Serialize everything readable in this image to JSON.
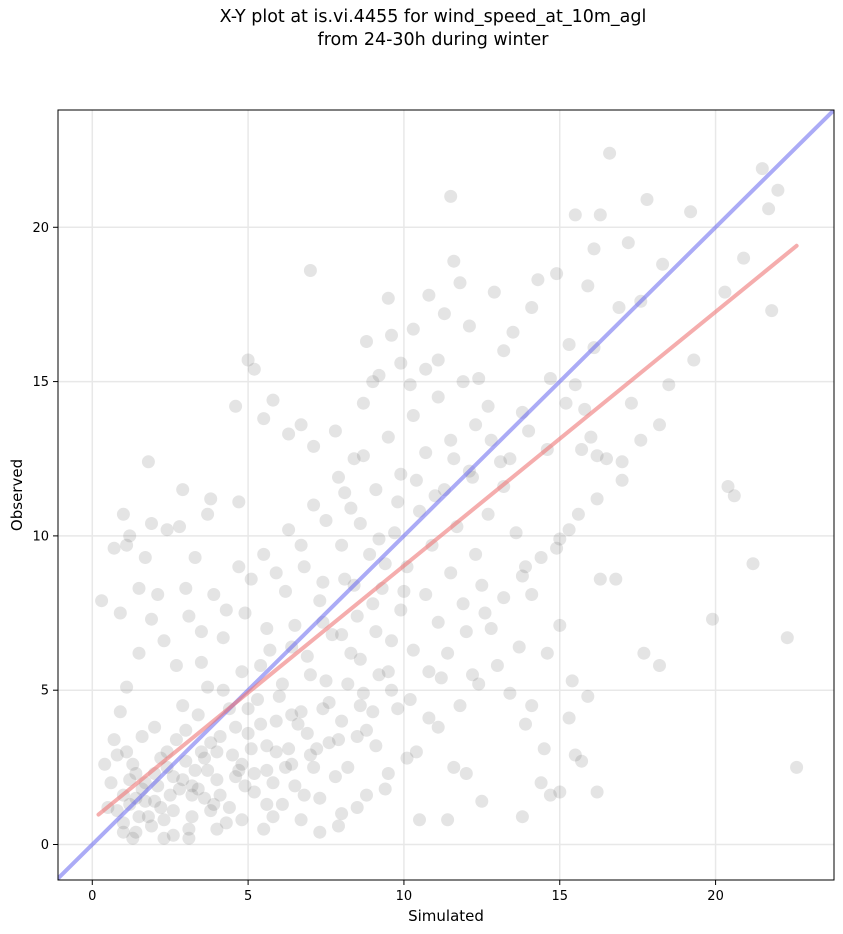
{
  "chart_data": {
    "type": "scatter",
    "title_line1": "X-Y plot at is.vi.4455 for wind_speed_at_10m_agl",
    "title_line2": "from 24-30h during winter",
    "xlabel": "Simulated",
    "ylabel": "Observed",
    "xlim": [
      -1.1,
      23.8
    ],
    "ylim": [
      -1.15,
      23.8
    ],
    "x_ticks": [
      0,
      5,
      10,
      15,
      20
    ],
    "y_ticks": [
      0,
      5,
      10,
      15,
      20
    ],
    "grid": true,
    "point_color": "#555555",
    "one_to_one_line": {
      "color": "#6666ee",
      "x": [
        -1.1,
        23.8
      ],
      "y": [
        -1.1,
        23.8
      ]
    },
    "fit_line": {
      "color": "#ee7777",
      "x": [
        0.2,
        22.6
      ],
      "y": [
        0.97,
        19.4
      ]
    },
    "points": [
      [
        0.3,
        7.9
      ],
      [
        0.7,
        9.6
      ],
      [
        0.9,
        7.5
      ],
      [
        1.0,
        10.7
      ],
      [
        1.1,
        9.7
      ],
      [
        1.2,
        10.0
      ],
      [
        1.5,
        8.3
      ],
      [
        1.7,
        9.3
      ],
      [
        1.8,
        12.4
      ],
      [
        1.9,
        10.4
      ],
      [
        2.1,
        8.1
      ],
      [
        2.4,
        10.2
      ],
      [
        2.8,
        10.3
      ],
      [
        2.9,
        11.5
      ],
      [
        3.0,
        8.3
      ],
      [
        3.3,
        9.3
      ],
      [
        3.7,
        10.7
      ],
      [
        3.8,
        11.2
      ],
      [
        4.6,
        14.2
      ],
      [
        4.7,
        11.1
      ],
      [
        5.0,
        15.7
      ],
      [
        5.2,
        15.4
      ],
      [
        5.5,
        13.8
      ],
      [
        5.8,
        14.4
      ],
      [
        6.3,
        13.3
      ],
      [
        6.7,
        13.6
      ],
      [
        7.0,
        18.6
      ],
      [
        7.1,
        12.9
      ],
      [
        7.8,
        13.4
      ],
      [
        8.1,
        11.4
      ],
      [
        8.4,
        12.5
      ],
      [
        8.7,
        14.3
      ],
      [
        8.8,
        16.3
      ],
      [
        9.0,
        15.0
      ],
      [
        9.2,
        15.2
      ],
      [
        9.5,
        17.7
      ],
      [
        9.6,
        16.5
      ],
      [
        9.9,
        15.6
      ],
      [
        10.2,
        14.9
      ],
      [
        10.3,
        16.7
      ],
      [
        10.7,
        15.4
      ],
      [
        10.8,
        17.8
      ],
      [
        11.1,
        15.7
      ],
      [
        11.3,
        17.2
      ],
      [
        11.5,
        21.0
      ],
      [
        11.6,
        18.9
      ],
      [
        11.8,
        18.2
      ],
      [
        12.1,
        16.8
      ],
      [
        12.4,
        15.1
      ],
      [
        12.7,
        14.2
      ],
      [
        12.9,
        17.9
      ],
      [
        13.2,
        16.0
      ],
      [
        13.5,
        16.6
      ],
      [
        13.8,
        14.0
      ],
      [
        14.1,
        17.4
      ],
      [
        14.3,
        18.3
      ],
      [
        14.7,
        15.1
      ],
      [
        14.9,
        18.5
      ],
      [
        15.3,
        16.2
      ],
      [
        15.5,
        14.9
      ],
      [
        15.8,
        14.1
      ],
      [
        16.1,
        16.1
      ],
      [
        16.3,
        20.4
      ],
      [
        16.6,
        22.4
      ],
      [
        16.9,
        17.4
      ],
      [
        17.3,
        14.3
      ],
      [
        17.8,
        20.9
      ],
      [
        18.3,
        18.8
      ],
      [
        18.5,
        14.9
      ],
      [
        19.2,
        20.5
      ],
      [
        19.3,
        15.7
      ],
      [
        20.3,
        17.9
      ],
      [
        20.9,
        19.0
      ],
      [
        21.5,
        21.9
      ],
      [
        21.7,
        20.6
      ],
      [
        21.8,
        17.3
      ],
      [
        22.0,
        21.2
      ],
      [
        15.5,
        20.4
      ],
      [
        16.1,
        19.3
      ],
      [
        15.9,
        18.1
      ],
      [
        17.2,
        19.5
      ],
      [
        17.6,
        17.6
      ],
      [
        13.2,
        11.6
      ],
      [
        13.6,
        10.1
      ],
      [
        13.9,
        9.0
      ],
      [
        14.1,
        8.1
      ],
      [
        14.6,
        6.2
      ],
      [
        14.9,
        9.6
      ],
      [
        15.0,
        7.1
      ],
      [
        15.3,
        10.2
      ],
      [
        15.7,
        12.8
      ],
      [
        16.0,
        13.2
      ],
      [
        16.2,
        12.6
      ],
      [
        16.5,
        12.5
      ],
      [
        17.0,
        12.4
      ],
      [
        16.3,
        8.6
      ],
      [
        16.8,
        8.6
      ],
      [
        17.7,
        6.2
      ],
      [
        18.2,
        5.8
      ],
      [
        19.9,
        7.3
      ],
      [
        20.4,
        11.6
      ],
      [
        20.6,
        11.3
      ],
      [
        21.2,
        9.1
      ],
      [
        22.3,
        6.7
      ],
      [
        22.6,
        2.5
      ],
      [
        12.8,
        7.0
      ],
      [
        13.0,
        5.8
      ],
      [
        13.4,
        4.9
      ],
      [
        13.7,
        6.4
      ],
      [
        13.9,
        3.9
      ],
      [
        14.1,
        4.5
      ],
      [
        14.5,
        3.1
      ],
      [
        14.7,
        1.6
      ],
      [
        15.0,
        1.7
      ],
      [
        15.3,
        4.1
      ],
      [
        15.5,
        2.9
      ],
      [
        15.7,
        2.7
      ],
      [
        15.9,
        4.8
      ],
      [
        16.2,
        1.7
      ],
      [
        15.4,
        5.3
      ],
      [
        13.8,
        0.9
      ],
      [
        14.4,
        2.0
      ],
      [
        12.5,
        1.4
      ],
      [
        12.0,
        2.3
      ],
      [
        11.4,
        0.8
      ],
      [
        11.6,
        2.5
      ],
      [
        12.2,
        5.5
      ],
      [
        10.5,
        0.8
      ],
      [
        10.1,
        2.8
      ],
      [
        10.8,
        4.1
      ],
      [
        11.2,
        5.4
      ],
      [
        9.4,
        1.8
      ],
      [
        9.1,
        3.2
      ],
      [
        8.6,
        4.5
      ],
      [
        8.2,
        2.5
      ],
      [
        0.5,
        1.2
      ],
      [
        0.8,
        2.9
      ],
      [
        1.0,
        0.4
      ],
      [
        1.2,
        2.1
      ],
      [
        1.4,
        1.5
      ],
      [
        1.6,
        3.5
      ],
      [
        1.8,
        0.9
      ],
      [
        2.0,
        2.3
      ],
      [
        2.2,
        1.2
      ],
      [
        2.4,
        3.0
      ],
      [
        2.6,
        0.3
      ],
      [
        2.8,
        1.8
      ],
      [
        3.0,
        2.7
      ],
      [
        3.2,
        0.9
      ],
      [
        3.4,
        4.2
      ],
      [
        3.6,
        1.5
      ],
      [
        3.8,
        3.3
      ],
      [
        4.0,
        2.1
      ],
      [
        4.2,
        5.0
      ],
      [
        4.4,
        1.2
      ],
      [
        4.6,
        3.8
      ],
      [
        4.8,
        2.6
      ],
      [
        5.0,
        4.4
      ],
      [
        5.2,
        1.7
      ],
      [
        5.4,
        5.8
      ],
      [
        5.6,
        3.2
      ],
      [
        5.8,
        0.9
      ],
      [
        6.0,
        4.8
      ],
      [
        6.2,
        2.5
      ],
      [
        6.4,
        6.4
      ],
      [
        6.6,
        3.9
      ],
      [
        6.8,
        1.6
      ],
      [
        7.0,
        5.5
      ],
      [
        7.2,
        3.1
      ],
      [
        7.4,
        7.2
      ],
      [
        7.6,
        4.6
      ],
      [
        7.8,
        2.2
      ],
      [
        8.0,
        6.8
      ],
      [
        8.2,
        5.2
      ],
      [
        8.4,
        8.4
      ],
      [
        8.6,
        6.0
      ],
      [
        8.8,
        3.7
      ],
      [
        9.0,
        7.8
      ],
      [
        9.2,
        5.5
      ],
      [
        9.4,
        9.1
      ],
      [
        9.6,
        6.6
      ],
      [
        9.8,
        4.4
      ],
      [
        10.0,
        8.2
      ],
      [
        1.3,
        0.2
      ],
      [
        1.9,
        0.6
      ],
      [
        2.5,
        1.6
      ],
      [
        3.1,
        0.5
      ],
      [
        3.7,
        2.4
      ],
      [
        4.3,
        0.7
      ],
      [
        4.9,
        1.9
      ],
      [
        5.5,
        0.5
      ],
      [
        6.1,
        1.3
      ],
      [
        6.7,
        0.8
      ],
      [
        7.3,
        1.5
      ],
      [
        7.9,
        0.6
      ],
      [
        8.5,
        1.2
      ],
      [
        0.9,
        4.3
      ],
      [
        1.1,
        5.1
      ],
      [
        1.5,
        6.2
      ],
      [
        1.9,
        7.3
      ],
      [
        2.3,
        6.6
      ],
      [
        2.7,
        5.8
      ],
      [
        3.1,
        7.4
      ],
      [
        3.5,
        6.9
      ],
      [
        3.9,
        8.1
      ],
      [
        4.3,
        7.6
      ],
      [
        4.7,
        9.0
      ],
      [
        5.1,
        8.6
      ],
      [
        5.5,
        9.4
      ],
      [
        5.9,
        8.8
      ],
      [
        6.3,
        10.2
      ],
      [
        6.7,
        9.7
      ],
      [
        7.1,
        11.0
      ],
      [
        7.5,
        10.5
      ],
      [
        7.9,
        11.9
      ],
      [
        8.3,
        10.9
      ],
      [
        8.7,
        12.6
      ],
      [
        9.1,
        11.5
      ],
      [
        9.5,
        13.2
      ],
      [
        9.9,
        12.0
      ],
      [
        10.3,
        13.9
      ],
      [
        10.7,
        12.7
      ],
      [
        11.1,
        14.5
      ],
      [
        11.5,
        13.1
      ],
      [
        11.9,
        15.0
      ],
      [
        12.3,
        13.6
      ],
      [
        12.7,
        10.7
      ],
      [
        13.1,
        12.4
      ],
      [
        0.6,
        2.0
      ],
      [
        0.7,
        3.4
      ],
      [
        1.0,
        1.6
      ],
      [
        1.3,
        2.6
      ],
      [
        1.5,
        0.9
      ],
      [
        1.7,
        2.0
      ],
      [
        2.0,
        3.8
      ],
      [
        2.2,
        2.8
      ],
      [
        2.3,
        0.8
      ],
      [
        2.6,
        2.2
      ],
      [
        2.9,
        4.5
      ],
      [
        3.0,
        3.7
      ],
      [
        3.2,
        1.9
      ],
      [
        3.5,
        3.0
      ],
      [
        3.7,
        5.1
      ],
      [
        3.9,
        1.3
      ],
      [
        4.1,
        3.5
      ],
      [
        4.4,
        4.4
      ],
      [
        4.6,
        2.2
      ],
      [
        4.8,
        5.6
      ],
      [
        5.1,
        3.1
      ],
      [
        5.3,
        4.7
      ],
      [
        5.6,
        2.4
      ],
      [
        5.7,
        6.3
      ],
      [
        5.9,
        4.0
      ],
      [
        6.1,
        5.2
      ],
      [
        6.3,
        3.1
      ],
      [
        6.5,
        7.1
      ],
      [
        6.7,
        4.3
      ],
      [
        6.9,
        6.1
      ],
      [
        7.1,
        2.5
      ],
      [
        7.3,
        7.9
      ],
      [
        7.5,
        5.3
      ],
      [
        7.7,
        6.8
      ],
      [
        7.9,
        3.4
      ],
      [
        8.1,
        8.6
      ],
      [
        8.3,
        6.2
      ],
      [
        8.5,
        7.4
      ],
      [
        8.7,
        4.9
      ],
      [
        8.9,
        9.4
      ],
      [
        9.1,
        6.9
      ],
      [
        9.3,
        8.3
      ],
      [
        9.5,
        5.6
      ],
      [
        9.7,
        10.1
      ],
      [
        9.9,
        7.6
      ],
      [
        10.1,
        9.0
      ],
      [
        10.3,
        6.3
      ],
      [
        10.5,
        10.8
      ],
      [
        10.7,
        8.1
      ],
      [
        10.9,
        9.7
      ],
      [
        11.1,
        7.2
      ],
      [
        11.3,
        11.5
      ],
      [
        11.5,
        8.8
      ],
      [
        11.7,
        10.3
      ],
      [
        11.9,
        7.8
      ],
      [
        12.1,
        12.1
      ],
      [
        12.3,
        9.4
      ],
      [
        12.5,
        8.4
      ],
      [
        0.4,
        2.6
      ],
      [
        0.8,
        1.1
      ],
      [
        1.1,
        3.0
      ],
      [
        1.4,
        2.3
      ],
      [
        1.7,
        1.4
      ],
      [
        2.1,
        1.9
      ],
      [
        2.4,
        2.5
      ],
      [
        2.7,
        3.4
      ],
      [
        3.3,
        2.4
      ],
      [
        3.6,
        2.8
      ],
      [
        4.0,
        3.0
      ],
      [
        4.5,
        2.9
      ],
      [
        5.0,
        3.6
      ],
      [
        5.4,
        3.9
      ],
      [
        5.9,
        3.0
      ],
      [
        6.4,
        4.2
      ],
      [
        6.9,
        3.6
      ],
      [
        7.4,
        4.4
      ],
      [
        2.0,
        1.4
      ],
      [
        2.6,
        1.1
      ],
      [
        3.2,
        1.6
      ],
      [
        3.8,
        1.1
      ],
      [
        1.6,
        1.8
      ],
      [
        1.2,
        1.3
      ],
      [
        2.9,
        2.1
      ],
      [
        3.4,
        1.8
      ],
      [
        4.1,
        1.6
      ],
      [
        4.7,
        2.4
      ],
      [
        5.2,
        2.3
      ],
      [
        5.8,
        2.0
      ],
      [
        6.4,
        2.6
      ],
      [
        7.0,
        2.9
      ],
      [
        7.6,
        3.3
      ],
      [
        8.0,
        4.0
      ],
      [
        8.5,
        3.5
      ],
      [
        9.0,
        4.3
      ],
      [
        9.6,
        5.0
      ],
      [
        10.2,
        4.7
      ],
      [
        10.8,
        5.6
      ],
      [
        11.4,
        6.2
      ],
      [
        12.0,
        6.9
      ],
      [
        12.6,
        7.5
      ],
      [
        13.2,
        8.0
      ],
      [
        13.8,
        8.7
      ],
      [
        14.4,
        9.3
      ],
      [
        15.0,
        9.9
      ],
      [
        15.6,
        10.7
      ],
      [
        16.2,
        11.2
      ],
      [
        17.0,
        11.8
      ],
      [
        17.6,
        13.1
      ],
      [
        18.2,
        13.6
      ],
      [
        1.0,
        0.7
      ],
      [
        1.4,
        0.4
      ],
      [
        2.3,
        0.2
      ],
      [
        3.1,
        0.2
      ],
      [
        4.0,
        0.5
      ],
      [
        4.8,
        0.8
      ],
      [
        5.6,
        1.3
      ],
      [
        6.5,
        1.9
      ],
      [
        7.3,
        0.4
      ],
      [
        8.0,
        1.0
      ],
      [
        8.8,
        1.6
      ],
      [
        9.5,
        2.3
      ],
      [
        10.4,
        3.0
      ],
      [
        11.1,
        3.8
      ],
      [
        11.8,
        4.5
      ],
      [
        12.4,
        5.2
      ],
      [
        3.5,
        5.9
      ],
      [
        4.2,
        6.7
      ],
      [
        4.9,
        7.5
      ],
      [
        5.6,
        7.0
      ],
      [
        6.2,
        8.2
      ],
      [
        6.8,
        9.0
      ],
      [
        7.4,
        8.5
      ],
      [
        8.0,
        9.7
      ],
      [
        8.6,
        10.4
      ],
      [
        9.2,
        9.9
      ],
      [
        9.8,
        11.1
      ],
      [
        10.4,
        11.8
      ],
      [
        11.0,
        11.3
      ],
      [
        11.6,
        12.5
      ],
      [
        12.2,
        11.9
      ],
      [
        12.8,
        13.1
      ],
      [
        13.4,
        12.5
      ],
      [
        14.0,
        13.4
      ],
      [
        14.6,
        12.8
      ],
      [
        15.2,
        14.3
      ]
    ]
  }
}
